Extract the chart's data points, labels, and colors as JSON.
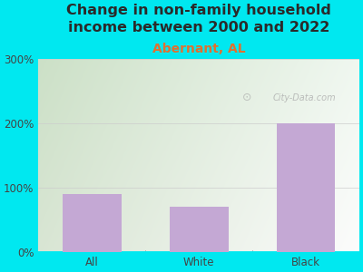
{
  "title": "Change in non-family household\nincome between 2000 and 2022",
  "subtitle": "Abernant, AL",
  "categories": [
    "All",
    "White",
    "Black"
  ],
  "values": [
    90,
    70,
    200
  ],
  "bar_color": "#c4a8d4",
  "title_color": "#2a2a2a",
  "subtitle_color": "#e07030",
  "background_color": "#00e8f0",
  "ylim": [
    0,
    300
  ],
  "yticks": [
    0,
    100,
    200,
    300
  ],
  "ytick_labels": [
    "0%",
    "100%",
    "200%",
    "300%"
  ],
  "watermark": "City-Data.com",
  "title_fontsize": 11.5,
  "subtitle_fontsize": 10,
  "tick_fontsize": 8.5
}
